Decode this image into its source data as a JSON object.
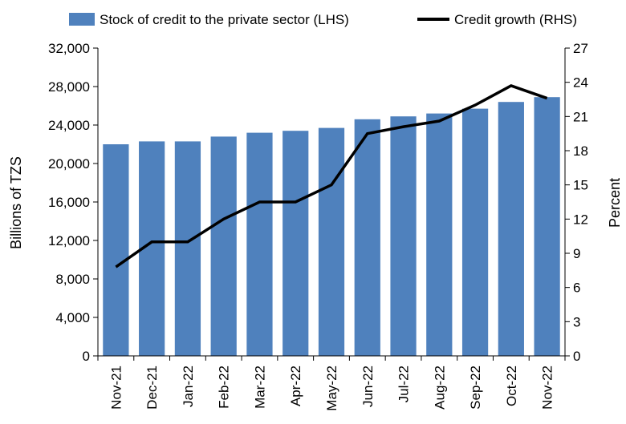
{
  "chart_data": {
    "type": "bar",
    "categories": [
      "Nov-21",
      "Dec-21",
      "Jan-22",
      "Feb-22",
      "Mar-22",
      "Apr-22",
      "May-22",
      "Jun-22",
      "Jul-22",
      "Aug-22",
      "Sep-22",
      "Oct-22",
      "Nov-22"
    ],
    "series": [
      {
        "name": "Stock of credit to the private sector (LHS)",
        "type": "bar",
        "axis": "left",
        "color": "#4f81bd",
        "values": [
          22000,
          22300,
          22300,
          22800,
          23200,
          23400,
          23700,
          24600,
          24900,
          25200,
          25700,
          26400,
          26900
        ]
      },
      {
        "name": "Credit growth (RHS)",
        "type": "line",
        "axis": "right",
        "color": "#000000",
        "values": [
          7.8,
          10.0,
          10.0,
          12.0,
          13.5,
          13.5,
          15.0,
          19.5,
          20.1,
          20.6,
          22.0,
          23.7,
          22.6
        ]
      }
    ],
    "ylabel": "Billions of TZS",
    "ylabel_right": "Percent",
    "ylim": [
      0,
      32000
    ],
    "ylim_right": [
      0,
      27
    ],
    "yticks": [
      "0",
      "4,000",
      "8,000",
      "12,000",
      "16,000",
      "20,000",
      "24,000",
      "28,000",
      "32,000"
    ],
    "yticks_right": [
      "0",
      "3",
      "6",
      "9",
      "12",
      "15",
      "18",
      "21",
      "24",
      "27"
    ],
    "legend_position": "top",
    "grid": false
  }
}
